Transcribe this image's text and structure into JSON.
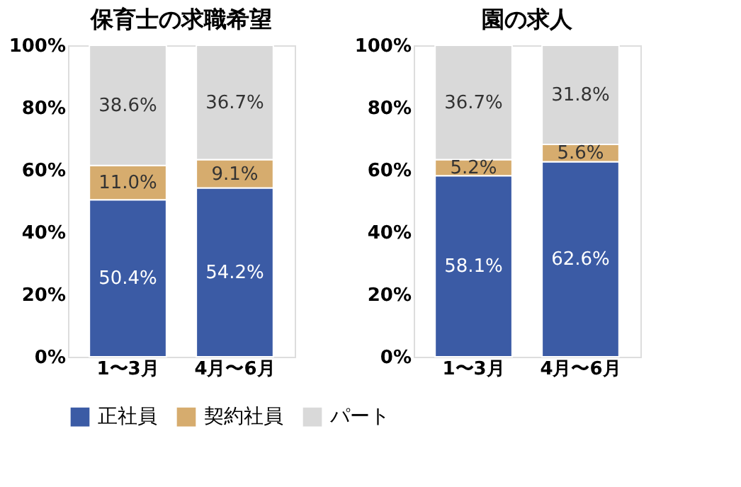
{
  "chart_data": [
    {
      "type": "bar",
      "stacked": true,
      "title": "保育士の求職希望",
      "categories": [
        "1〜3月",
        "4月〜6月"
      ],
      "series": [
        {
          "name": "正社員",
          "color": "#3b5ba5",
          "values": [
            50.4,
            54.2
          ]
        },
        {
          "name": "契約社員",
          "color": "#d6ac6e",
          "values": [
            11.0,
            9.1
          ]
        },
        {
          "name": "パート",
          "color": "#d9d9d9",
          "values": [
            38.6,
            36.7
          ]
        }
      ],
      "ylim": [
        0,
        100
      ],
      "yticks": [
        {
          "value": 0,
          "label": "0%"
        },
        {
          "value": 20,
          "label": "20%"
        },
        {
          "value": 40,
          "label": "40%"
        },
        {
          "value": 60,
          "label": "60%"
        },
        {
          "value": 80,
          "label": "80%"
        },
        {
          "value": 100,
          "label": "100%"
        }
      ],
      "value_labels": [
        [
          "50.4%",
          "54.2%"
        ],
        [
          "11.0%",
          "9.1%"
        ],
        [
          "38.6%",
          "36.7%"
        ]
      ],
      "grid": false,
      "legend": "bottom"
    },
    {
      "type": "bar",
      "stacked": true,
      "title": "園の求人",
      "categories": [
        "1〜3月",
        "4月〜6月"
      ],
      "series": [
        {
          "name": "正社員",
          "color": "#3b5ba5",
          "values": [
            58.1,
            62.6
          ]
        },
        {
          "name": "契約社員",
          "color": "#d6ac6e",
          "values": [
            5.2,
            5.6
          ]
        },
        {
          "name": "パート",
          "color": "#d9d9d9",
          "values": [
            36.7,
            31.8
          ]
        }
      ],
      "ylim": [
        0,
        100
      ],
      "yticks": [
        {
          "value": 0,
          "label": "0%"
        },
        {
          "value": 20,
          "label": "20%"
        },
        {
          "value": 40,
          "label": "40%"
        },
        {
          "value": 60,
          "label": "60%"
        },
        {
          "value": 80,
          "label": "80%"
        },
        {
          "value": 100,
          "label": "100%"
        }
      ],
      "value_labels": [
        [
          "58.1%",
          "62.6%"
        ],
        [
          "5.2%",
          "5.6%"
        ],
        [
          "36.7%",
          "31.8%"
        ]
      ],
      "grid": false,
      "legend": "bottom"
    }
  ]
}
